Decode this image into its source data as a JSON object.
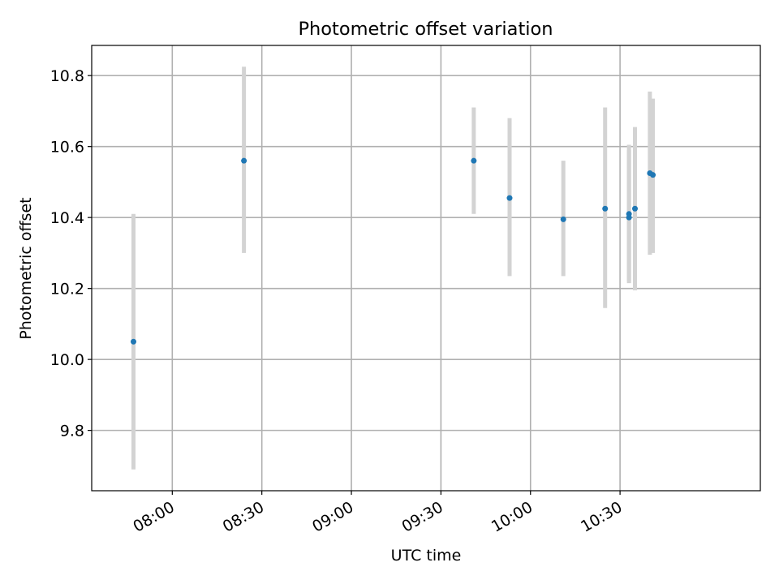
{
  "chart_data": {
    "type": "scatter",
    "title": "Photometric offset variation",
    "xlabel": "UTC time",
    "ylabel": "Photometric offset",
    "x_axis": {
      "kind": "time",
      "range": [
        "07:33",
        "11:17"
      ],
      "ticks": [
        "08:00",
        "08:30",
        "09:00",
        "09:30",
        "10:00",
        "10:30"
      ],
      "tick_rotation_deg": 30
    },
    "y_axis": {
      "range": [
        9.63,
        10.885
      ],
      "ticks": [
        "9.8",
        "10.0",
        "10.2",
        "10.4",
        "10.6",
        "10.8"
      ]
    },
    "grid": true,
    "legend": "none",
    "marker_color": "#1f77b4",
    "error_bar_color": "#d3d3d3",
    "series": [
      {
        "points": [
          {
            "x": "07:47",
            "y": 10.05,
            "yerr_low": 9.69,
            "yerr_high": 10.41
          },
          {
            "x": "08:24",
            "y": 10.56,
            "yerr_low": 10.3,
            "yerr_high": 10.825
          },
          {
            "x": "09:41",
            "y": 10.56,
            "yerr_low": 10.41,
            "yerr_high": 10.71
          },
          {
            "x": "09:53",
            "y": 10.455,
            "yerr_low": 10.235,
            "yerr_high": 10.68
          },
          {
            "x": "10:11",
            "y": 10.395,
            "yerr_low": 10.235,
            "yerr_high": 10.56
          },
          {
            "x": "10:25",
            "y": 10.425,
            "yerr_low": 10.145,
            "yerr_high": 10.71
          },
          {
            "x": "10:33",
            "y": 10.4,
            "yerr_low": 10.215,
            "yerr_high": 10.59
          },
          {
            "x": "10:33",
            "y": 10.41,
            "yerr_low": 10.22,
            "yerr_high": 10.605
          },
          {
            "x": "10:35",
            "y": 10.425,
            "yerr_low": 10.195,
            "yerr_high": 10.655
          },
          {
            "x": "10:40",
            "y": 10.525,
            "yerr_low": 10.295,
            "yerr_high": 10.755
          },
          {
            "x": "10:41",
            "y": 10.52,
            "yerr_low": 10.3,
            "yerr_high": 10.735
          }
        ]
      }
    ]
  }
}
